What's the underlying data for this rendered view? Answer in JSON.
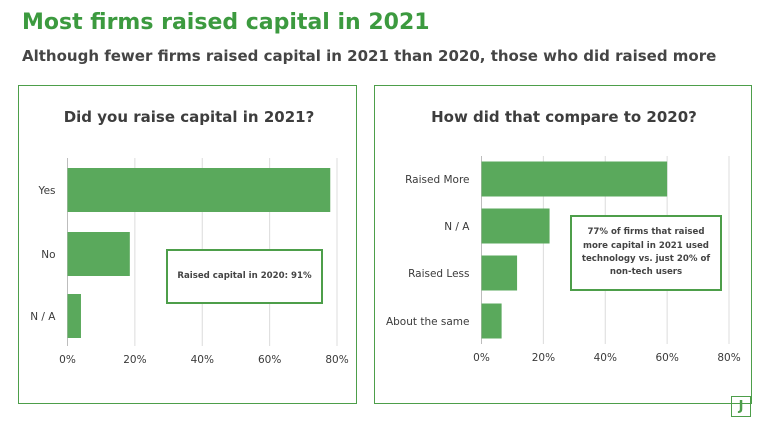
{
  "title": "Most firms raised capital in 2021",
  "subtitle": "Although fewer firms raised capital in 2021 than 2020, those who did raised more",
  "colors": {
    "accent": "#3c9a3f",
    "bar": "#5aa95c",
    "border": "#4d9e4a"
  },
  "chart_data": [
    {
      "type": "bar",
      "orientation": "horizontal",
      "title": "Did you raise capital in 2021?",
      "categories": [
        "Yes",
        "No",
        "N / A"
      ],
      "values": [
        78,
        18.5,
        4
      ],
      "xticks": [
        "0%",
        "20%",
        "40%",
        "60%",
        "80%"
      ],
      "xlim": [
        0,
        80
      ],
      "grid": true,
      "annotation": "Raised capital in 2020: 91%"
    },
    {
      "type": "bar",
      "orientation": "horizontal",
      "title": "How did that compare to 2020?",
      "categories": [
        "Raised More",
        "N / A",
        "Raised Less",
        "About the same"
      ],
      "values": [
        60,
        22,
        11.5,
        6.5
      ],
      "xticks": [
        "0%",
        "20%",
        "40%",
        "60%",
        "80%"
      ],
      "xlim": [
        0,
        80
      ],
      "grid": true,
      "annotation": "77% of firms that raised more capital in 2021 used technology vs. just 20% of non-tech users"
    }
  ],
  "logo_text": "J"
}
